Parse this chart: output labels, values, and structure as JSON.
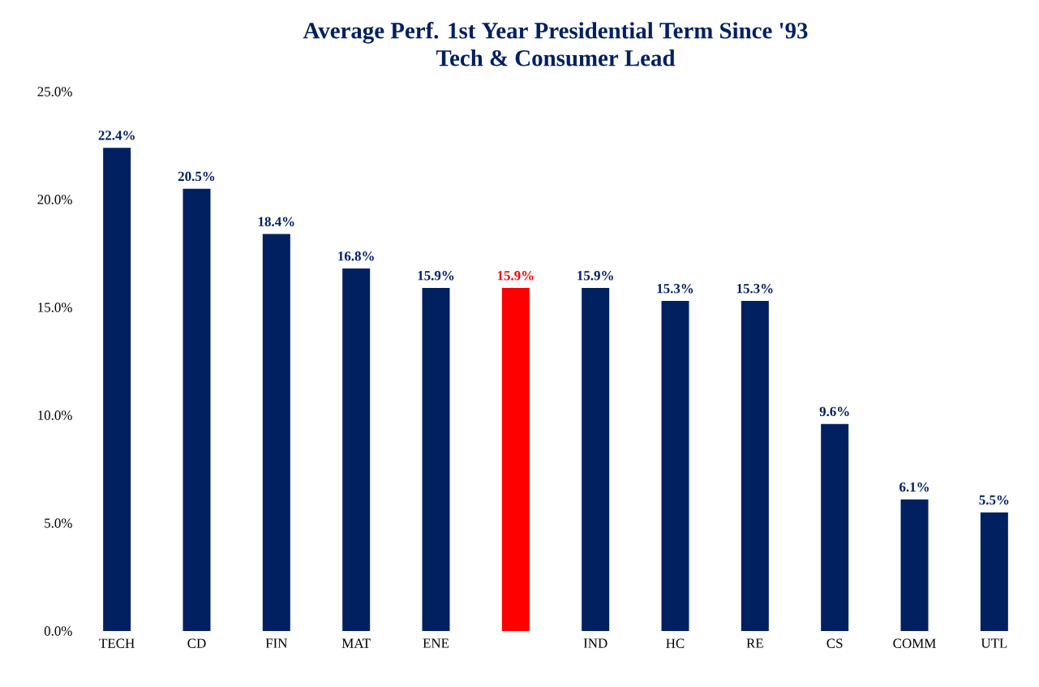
{
  "chart_data": {
    "type": "bar",
    "title": "Average Perf. 1st Year Presidential Term Since '93",
    "subtitle": "Tech & Consumer Lead",
    "categories": [
      "TECH",
      "CD",
      "FIN",
      "MAT",
      "ENE",
      null,
      "IND",
      "HC",
      "RE",
      "CS",
      "COMM",
      "UTL"
    ],
    "values": [
      22.4,
      20.5,
      18.4,
      16.8,
      15.9,
      15.9,
      15.9,
      15.3,
      15.3,
      9.6,
      6.1,
      5.5
    ],
    "value_labels": [
      "22.4%",
      "20.5%",
      "18.4%",
      "16.8%",
      "15.9%",
      "15.9%",
      "15.9%",
      "15.3%",
      "15.3%",
      "9.6%",
      "6.1%",
      "5.5%"
    ],
    "colors": [
      "#002060",
      "#002060",
      "#002060",
      "#002060",
      "#002060",
      "#ff0000",
      "#002060",
      "#002060",
      "#002060",
      "#002060",
      "#002060",
      "#002060"
    ],
    "ylim": [
      0,
      25
    ],
    "yticks": [
      {
        "value": 0,
        "label": "0.0%"
      },
      {
        "value": 5,
        "label": "5.0%"
      },
      {
        "value": 10,
        "label": "10.0%"
      },
      {
        "value": 15,
        "label": "15.0%"
      },
      {
        "value": 20,
        "label": "20.0%"
      },
      {
        "value": 25,
        "label": "25.0%"
      }
    ],
    "grid": false
  }
}
